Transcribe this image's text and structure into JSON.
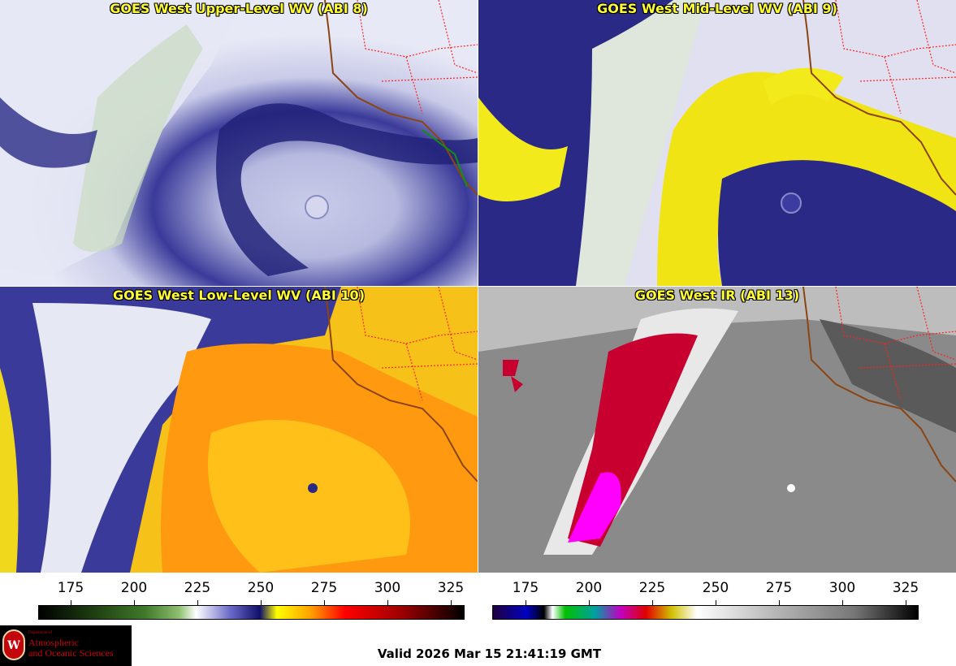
{
  "panels": [
    {
      "title": "GOES West Upper-Level WV (ABI 8)"
    },
    {
      "title": "GOES West Mid-Level WV (ABI 9)"
    },
    {
      "title": "GOES West Low-Level WV (ABI 10)"
    },
    {
      "title": "GOES West IR (ABI 13)"
    }
  ],
  "colorbar_left": {
    "ticks": [
      "175",
      "200",
      "225",
      "250",
      "275",
      "300",
      "325"
    ]
  },
  "colorbar_right": {
    "ticks": [
      "175",
      "200",
      "225",
      "250",
      "275",
      "300",
      "325"
    ]
  },
  "valid_time": "Valid 2026 Mar 15 21:41:19 GMT",
  "logo": {
    "dept": "Department of",
    "line1": "Atmospheric",
    "line2": "and Oceanic Sciences",
    "seal": "W"
  },
  "colors": {
    "wv_dry": "#1a1a7a",
    "wv_moist": "#ffffff",
    "wv_warm": "#ffef00",
    "wv_hot": "#ff6a00",
    "ir_cold": "#e0004a",
    "ir_gray": "#8a8a8a",
    "state_lines": "#ff2020",
    "coast": "#8b4513"
  }
}
